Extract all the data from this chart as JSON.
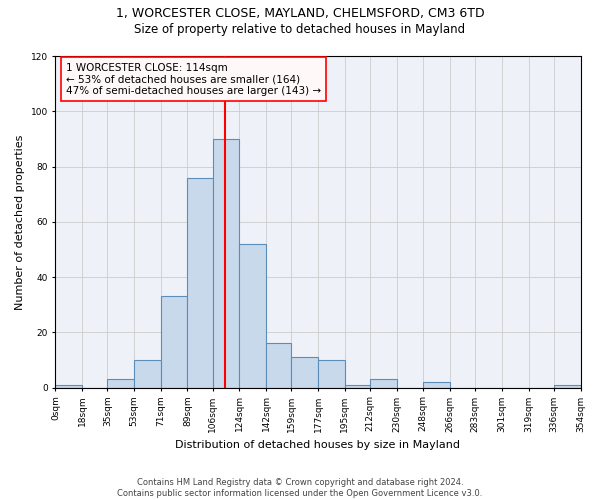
{
  "title1": "1, WORCESTER CLOSE, MAYLAND, CHELMSFORD, CM3 6TD",
  "title2": "Size of property relative to detached houses in Mayland",
  "xlabel": "Distribution of detached houses by size in Mayland",
  "ylabel": "Number of detached properties",
  "bin_edges": [
    0,
    18,
    35,
    53,
    71,
    89,
    106,
    124,
    142,
    159,
    177,
    195,
    212,
    230,
    248,
    266,
    283,
    301,
    319,
    336,
    354
  ],
  "bar_heights": [
    1,
    0,
    3,
    10,
    33,
    76,
    90,
    52,
    16,
    11,
    10,
    1,
    3,
    0,
    2,
    0,
    0,
    0,
    0,
    1
  ],
  "bar_color": "#c9d9ec",
  "bar_edge_color": "#5b8db8",
  "vline_x": 114,
  "vline_color": "red",
  "annotation_text": "1 WORCESTER CLOSE: 114sqm\n← 53% of detached houses are smaller (164)\n47% of semi-detached houses are larger (143) →",
  "annotation_box_color": "#fff8f8",
  "annotation_box_edge": "red",
  "ylim": [
    0,
    120
  ],
  "yticks": [
    0,
    20,
    40,
    60,
    80,
    100,
    120
  ],
  "footnote": "Contains HM Land Registry data © Crown copyright and database right 2024.\nContains public sector information licensed under the Open Government Licence v3.0.",
  "grid_color": "#cccccc",
  "background_color": "#eef2f8",
  "title1_fontsize": 9,
  "title2_fontsize": 8.5,
  "ylabel_fontsize": 8,
  "xlabel_fontsize": 8,
  "footnote_fontsize": 6,
  "tick_fontsize": 6.5,
  "annot_fontsize": 7.5
}
